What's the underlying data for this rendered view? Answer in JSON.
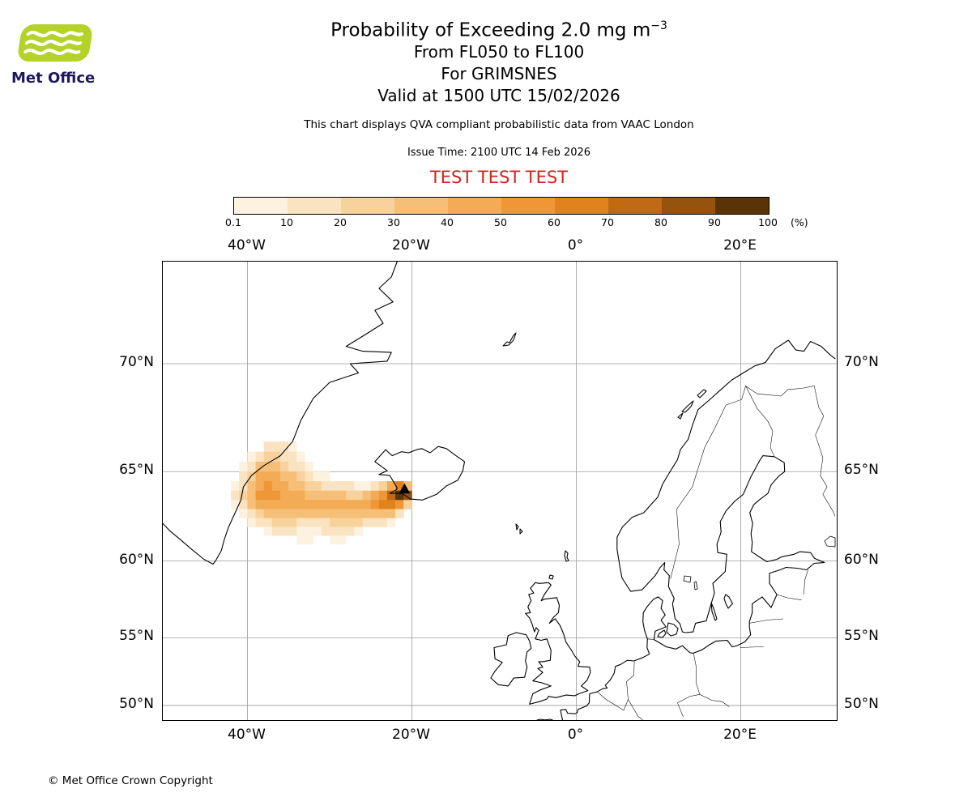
{
  "header": {
    "logo_text": "Met Office",
    "title_main": "Probability of Exceeding 2.0 mg m",
    "title_exponent": "−3",
    "line_flight_levels": "From FL050 to FL100",
    "line_volcano": "For GRIMSNES",
    "line_valid": "Valid at 1500 UTC 15/02/2026",
    "qva_note": "This chart displays QVA compliant probabilistic data from VAAC London",
    "issue_time": "Issue Time: 2100 UTC 14 Feb 2026",
    "test_banner": "TEST TEST TEST",
    "test_banner_color": "#d9201f"
  },
  "logo": {
    "green": "#b5d229",
    "navy": "#1d175c"
  },
  "colorbar": {
    "ticks": [
      "0.1",
      "10",
      "20",
      "30",
      "40",
      "50",
      "60",
      "70",
      "80",
      "90",
      "100"
    ],
    "unit_label": "(%)",
    "colors": [
      "#fdf2e0",
      "#fae3c0",
      "#f8d29c",
      "#f6bf78",
      "#f3ab55",
      "#ef9737",
      "#e0831f",
      "#c06a14",
      "#95530f",
      "#5a3406"
    ]
  },
  "map": {
    "lon_ticks": [
      {
        "lon": -40,
        "label": "40°W"
      },
      {
        "lon": -20,
        "label": "20°W"
      },
      {
        "lon": 0,
        "label": "0°"
      },
      {
        "lon": 20,
        "label": "20°E"
      }
    ],
    "lat_ticks": [
      {
        "lat": 70,
        "label": "70°N"
      },
      {
        "lat": 65,
        "label": "65°N"
      },
      {
        "lat": 60,
        "label": "60°N"
      },
      {
        "lat": 55,
        "label": "55°N"
      },
      {
        "lat": 50,
        "label": "50°N"
      }
    ],
    "volcano": {
      "name": "GRIMSNES",
      "lon": -20.9,
      "lat": 64.05
    }
  },
  "chart_data": {
    "type": "heatmap",
    "title": "Probability of Exceeding 2.0 mg m−3",
    "threshold_mg_m3": 2.0,
    "flight_levels": "FL050 to FL100",
    "volcano": "GRIMSNES",
    "valid_time": "1500 UTC 15/02/2026",
    "issue_time": "2100 UTC 14 Feb 2026",
    "units": "%",
    "scale_breaks": [
      0.1,
      10,
      20,
      30,
      40,
      50,
      60,
      70,
      80,
      90,
      100
    ],
    "extent": {
      "lon": [
        -50.3,
        31.6
      ],
      "lat": [
        48.8,
        73.8
      ]
    },
    "cell_size_deg": {
      "lon": 1.0,
      "lat": 0.5
    },
    "cells": [
      [
        -38,
        66,
        10
      ],
      [
        -37,
        66,
        15
      ],
      [
        -36,
        66,
        10
      ],
      [
        -35,
        66,
        5
      ],
      [
        -40,
        65.5,
        5
      ],
      [
        -39,
        65.5,
        15
      ],
      [
        -38,
        65.5,
        25
      ],
      [
        -37,
        65.5,
        25
      ],
      [
        -36,
        65.5,
        15
      ],
      [
        -35,
        65.5,
        10
      ],
      [
        -34,
        65.5,
        5
      ],
      [
        -41,
        65,
        5
      ],
      [
        -40,
        65,
        15
      ],
      [
        -39,
        65,
        30
      ],
      [
        -38,
        65,
        35
      ],
      [
        -37,
        65,
        30
      ],
      [
        -36,
        65,
        25
      ],
      [
        -35,
        65,
        15
      ],
      [
        -34,
        65,
        10
      ],
      [
        -33,
        65,
        5
      ],
      [
        -41,
        64.5,
        10
      ],
      [
        -40,
        64.5,
        20
      ],
      [
        -39,
        64.5,
        40
      ],
      [
        -38,
        64.5,
        45
      ],
      [
        -37,
        64.5,
        40
      ],
      [
        -36,
        64.5,
        35
      ],
      [
        -35,
        64.5,
        30
      ],
      [
        -34,
        64.5,
        20
      ],
      [
        -33,
        64.5,
        10
      ],
      [
        -32,
        64.5,
        5
      ],
      [
        -31,
        64.5,
        5
      ],
      [
        -42,
        64,
        5
      ],
      [
        -41,
        64,
        15
      ],
      [
        -40,
        64,
        30
      ],
      [
        -39,
        64,
        45
      ],
      [
        -38,
        64,
        50
      ],
      [
        -37,
        64,
        45
      ],
      [
        -36,
        64,
        40
      ],
      [
        -35,
        64,
        35
      ],
      [
        -34,
        64,
        30
      ],
      [
        -33,
        64,
        25
      ],
      [
        -32,
        64,
        20
      ],
      [
        -31,
        64,
        15
      ],
      [
        -30,
        64,
        10
      ],
      [
        -29,
        64,
        10
      ],
      [
        -28,
        64,
        10
      ],
      [
        -27,
        64,
        5
      ],
      [
        -26,
        64,
        5
      ],
      [
        -25,
        64,
        10
      ],
      [
        -24,
        64,
        20
      ],
      [
        -23,
        64,
        40
      ],
      [
        -22,
        64,
        60
      ],
      [
        -21,
        64,
        30
      ],
      [
        -42,
        63.5,
        10
      ],
      [
        -41,
        63.5,
        20
      ],
      [
        -40,
        63.5,
        35
      ],
      [
        -39,
        63.5,
        50
      ],
      [
        -38,
        63.5,
        55
      ],
      [
        -37,
        63.5,
        50
      ],
      [
        -36,
        63.5,
        45
      ],
      [
        -35,
        63.5,
        45
      ],
      [
        -34,
        63.5,
        40
      ],
      [
        -33,
        63.5,
        35
      ],
      [
        -32,
        63.5,
        35
      ],
      [
        -31,
        63.5,
        30
      ],
      [
        -30,
        63.5,
        30
      ],
      [
        -29,
        63.5,
        30
      ],
      [
        -28,
        63.5,
        25
      ],
      [
        -27,
        63.5,
        25
      ],
      [
        -26,
        63.5,
        30
      ],
      [
        -25,
        63.5,
        40
      ],
      [
        -24,
        63.5,
        55
      ],
      [
        -23,
        63.5,
        75
      ],
      [
        -22,
        63.5,
        95
      ],
      [
        -21,
        63.5,
        85
      ],
      [
        -42,
        63,
        5
      ],
      [
        -41,
        63,
        15
      ],
      [
        -40,
        63,
        30
      ],
      [
        -39,
        63,
        40
      ],
      [
        -38,
        63,
        45
      ],
      [
        -37,
        63,
        45
      ],
      [
        -36,
        63,
        45
      ],
      [
        -35,
        63,
        40
      ],
      [
        -34,
        63,
        40
      ],
      [
        -33,
        63,
        40
      ],
      [
        -32,
        63,
        40
      ],
      [
        -31,
        63,
        40
      ],
      [
        -30,
        63,
        40
      ],
      [
        -29,
        63,
        40
      ],
      [
        -28,
        63,
        40
      ],
      [
        -27,
        63,
        40
      ],
      [
        -26,
        63,
        45
      ],
      [
        -25,
        63,
        50
      ],
      [
        -24,
        63,
        60
      ],
      [
        -23,
        63,
        65
      ],
      [
        -22,
        63,
        55
      ],
      [
        -21,
        63,
        25
      ],
      [
        -41,
        62.5,
        5
      ],
      [
        -40,
        62.5,
        15
      ],
      [
        -39,
        62.5,
        25
      ],
      [
        -38,
        62.5,
        30
      ],
      [
        -37,
        62.5,
        30
      ],
      [
        -36,
        62.5,
        35
      ],
      [
        -35,
        62.5,
        30
      ],
      [
        -34,
        62.5,
        30
      ],
      [
        -33,
        62.5,
        30
      ],
      [
        -32,
        62.5,
        30
      ],
      [
        -31,
        62.5,
        30
      ],
      [
        -30,
        62.5,
        30
      ],
      [
        -29,
        62.5,
        30
      ],
      [
        -28,
        62.5,
        30
      ],
      [
        -27,
        62.5,
        30
      ],
      [
        -26,
        62.5,
        30
      ],
      [
        -25,
        62.5,
        35
      ],
      [
        -24,
        62.5,
        35
      ],
      [
        -23,
        62.5,
        30
      ],
      [
        -22,
        62.5,
        15
      ],
      [
        -40,
        62,
        5
      ],
      [
        -39,
        62,
        10
      ],
      [
        -38,
        62,
        15
      ],
      [
        -37,
        62,
        20
      ],
      [
        -36,
        62,
        20
      ],
      [
        -35,
        62,
        20
      ],
      [
        -34,
        62,
        15
      ],
      [
        -33,
        62,
        15
      ],
      [
        -32,
        62,
        15
      ],
      [
        -31,
        62,
        15
      ],
      [
        -30,
        62,
        20
      ],
      [
        -29,
        62,
        20
      ],
      [
        -28,
        62,
        20
      ],
      [
        -27,
        62,
        20
      ],
      [
        -26,
        62,
        15
      ],
      [
        -25,
        62,
        15
      ],
      [
        -24,
        62,
        10
      ],
      [
        -23,
        62,
        5
      ],
      [
        -38,
        61.5,
        5
      ],
      [
        -37,
        61.5,
        10
      ],
      [
        -36,
        61.5,
        10
      ],
      [
        -35,
        61.5,
        10
      ],
      [
        -34,
        61.5,
        5
      ],
      [
        -33,
        61.5,
        5
      ],
      [
        -32,
        61.5,
        5
      ],
      [
        -31,
        61.5,
        10
      ],
      [
        -30,
        61.5,
        10
      ],
      [
        -29,
        61.5,
        10
      ],
      [
        -28,
        61.5,
        10
      ],
      [
        -27,
        61.5,
        5
      ],
      [
        -34,
        61,
        5
      ],
      [
        -33,
        61,
        5
      ],
      [
        -30,
        61,
        5
      ],
      [
        -29,
        61,
        5
      ]
    ]
  },
  "footer": {
    "copyright": "© Met Office Crown Copyright"
  }
}
